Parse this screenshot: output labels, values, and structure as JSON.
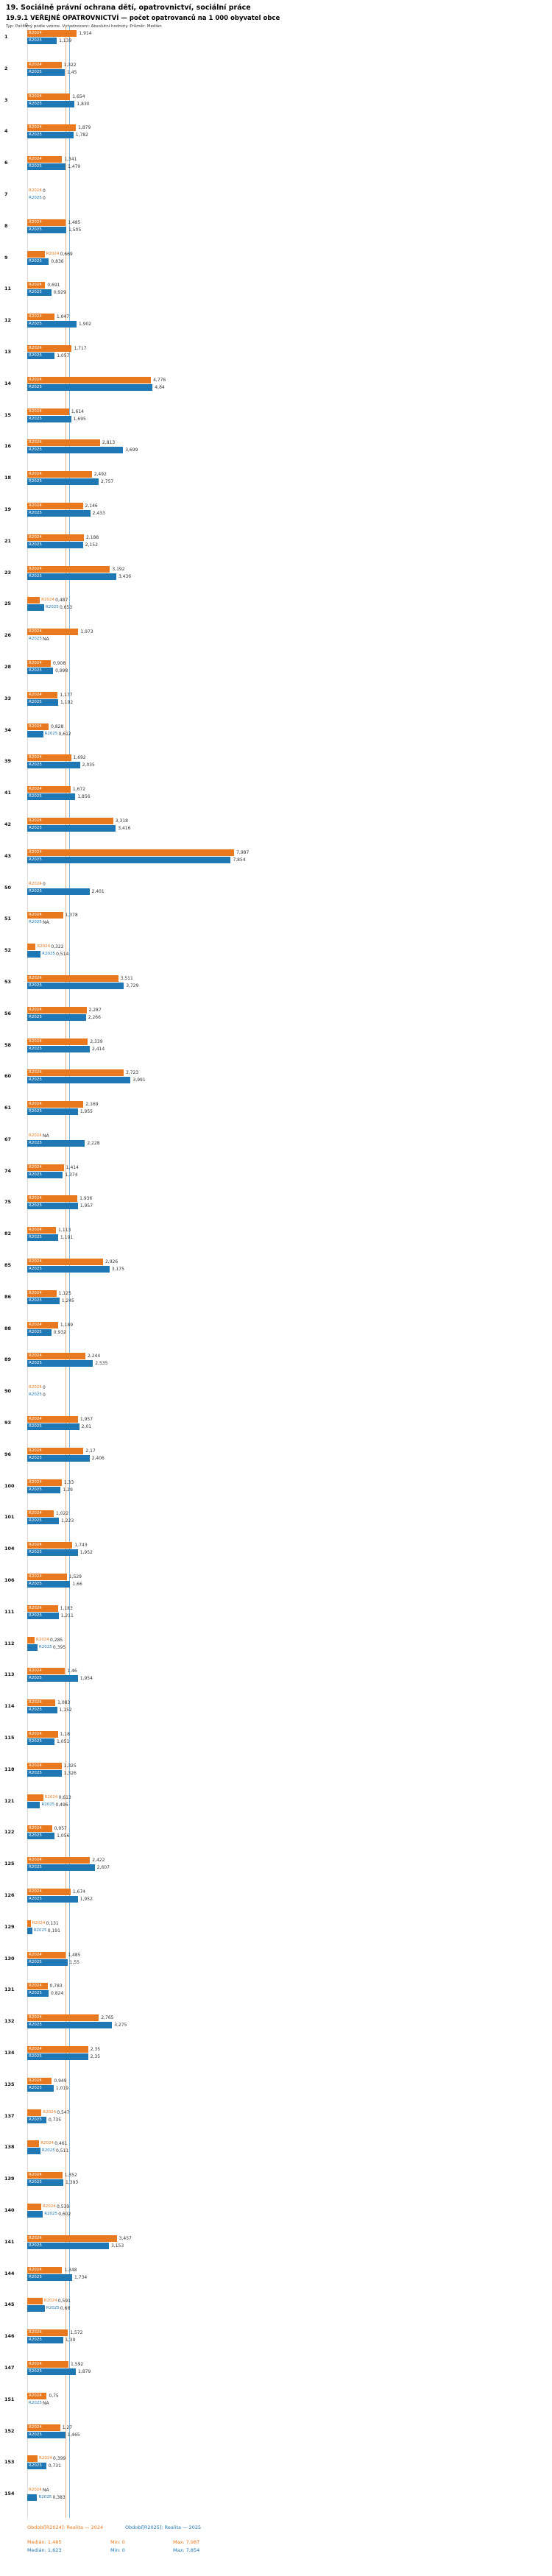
{
  "header": {
    "title": "19. Sociálně právní ochrana dětí, opatrovnictví, sociální práce",
    "subtitle": "19.9.1 VEŘEJNÉ OPATROVNICTVÍ — počet opatrovanců na 1 000 obyvatel obce",
    "meta": "Typ: Počítaný podle vzorce. Vyhodnocení: Absolutní hodnoty. Průměr: Medián"
  },
  "colors": {
    "r2024": "#e8791e",
    "r2025": "#1f77b4",
    "value_text": "#333333"
  },
  "chart_data": {
    "type": "bar",
    "orientation": "horizontal",
    "grouped": true,
    "title": "19.9.1 VEŘEJNÉ OPATROVNICTVÍ — počet opatrovanců na 1 000 obyvatel obce",
    "x_axis": {
      "min": 0,
      "max": 8.03,
      "zero_label": "0"
    },
    "series": [
      {
        "name": "R2024",
        "color": "#e8791e",
        "median": 1.485,
        "min": 0,
        "max": 7.987
      },
      {
        "name": "R2025",
        "color": "#1f77b4",
        "median": 1.623,
        "min": 0,
        "max": 7.854
      }
    ],
    "gridlines": [
      {
        "series": "R2024",
        "value": 1.485
      },
      {
        "series": "R2025",
        "value": 1.623
      }
    ],
    "rows": [
      {
        "n": "1",
        "R2024": "1,914",
        "R2025": "1,139"
      },
      {
        "n": "2",
        "R2024": "1,322",
        "R2025": "1,45"
      },
      {
        "n": "3",
        "R2024": "1,654",
        "R2025": "1,830"
      },
      {
        "n": "4",
        "R2024": "1,879",
        "R2025": "1,782"
      },
      {
        "n": "6",
        "R2024": "1,341",
        "R2025": "1,479"
      },
      {
        "n": "7",
        "R2024": "0",
        "R2025": "0"
      },
      {
        "n": "8",
        "R2024": "1,485",
        "R2025": "1,505"
      },
      {
        "n": "9",
        "R2024": "0,669",
        "R2025": "0,836"
      },
      {
        "n": "11",
        "R2024": "0,691",
        "R2025": "0,929"
      },
      {
        "n": "12",
        "R2024": "1,047",
        "R2025": "1,902"
      },
      {
        "n": "13",
        "R2024": "1,717",
        "R2025": "1,057"
      },
      {
        "n": "14",
        "R2024": "4,776",
        "R2025": "4,84"
      },
      {
        "n": "15",
        "R2024": "1,614",
        "R2025": "1,695"
      },
      {
        "n": "16",
        "R2024": "2,813",
        "R2025": "3,699"
      },
      {
        "n": "18",
        "R2024": "2,492",
        "R2025": "2,757"
      },
      {
        "n": "19",
        "R2024": "2,146",
        "R2025": "2,433"
      },
      {
        "n": "21",
        "R2024": "2,188",
        "R2025": "2,152"
      },
      {
        "n": "23",
        "R2024": "3,192",
        "R2025": "3,436"
      },
      {
        "n": "25",
        "R2024": "0,487",
        "R2025": "0,653"
      },
      {
        "n": "26",
        "R2024": "1,973",
        "R2025": "NA"
      },
      {
        "n": "28",
        "R2024": "0,908",
        "R2025": "0,998"
      },
      {
        "n": "33",
        "R2024": "1,177",
        "R2025": "1,192"
      },
      {
        "n": "34",
        "R2024": "0,828",
        "R2025": "0,612"
      },
      {
        "n": "39",
        "R2024": "1,692",
        "R2025": "2,035"
      },
      {
        "n": "41",
        "R2024": "1,672",
        "R2025": "1,856"
      },
      {
        "n": "42",
        "R2024": "3,318",
        "R2025": "3,416"
      },
      {
        "n": "43",
        "R2024": "7,987",
        "R2025": "7,854"
      },
      {
        "n": "50",
        "R2024": "0",
        "R2025": "2,401"
      },
      {
        "n": "51",
        "R2024": "1,378",
        "R2025": "NA"
      },
      {
        "n": "52",
        "R2024": "0,322",
        "R2025": "0,514"
      },
      {
        "n": "53",
        "R2024": "3,511",
        "R2025": "3,729"
      },
      {
        "n": "56",
        "R2024": "2,287",
        "R2025": "2,266"
      },
      {
        "n": "58",
        "R2024": "2,339",
        "R2025": "2,414"
      },
      {
        "n": "60",
        "R2024": "3,723",
        "R2025": "3,991"
      },
      {
        "n": "61",
        "R2024": "2,169",
        "R2025": "1,955"
      },
      {
        "n": "67",
        "R2024": "NA",
        "R2025": "2,228"
      },
      {
        "n": "74",
        "R2024": "1,414",
        "R2025": "1,374"
      },
      {
        "n": "75",
        "R2024": "1,936",
        "R2025": "1,957"
      },
      {
        "n": "82",
        "R2024": "1,113",
        "R2025": "1,191"
      },
      {
        "n": "85",
        "R2024": "2,926",
        "R2025": "3,175"
      },
      {
        "n": "86",
        "R2024": "1,125",
        "R2025": "1,245"
      },
      {
        "n": "88",
        "R2024": "1,189",
        "R2025": "0,932"
      },
      {
        "n": "89",
        "R2024": "2,244",
        "R2025": "2,535"
      },
      {
        "n": "90",
        "R2024": "0",
        "R2025": "0"
      },
      {
        "n": "93",
        "R2024": "1,957",
        "R2025": "2,01"
      },
      {
        "n": "96",
        "R2024": "2,17",
        "R2025": "2,406"
      },
      {
        "n": "100",
        "R2024": "1,33",
        "R2025": "1,29"
      },
      {
        "n": "101",
        "R2024": "1,022",
        "R2025": "1,223"
      },
      {
        "n": "104",
        "R2024": "1,743",
        "R2025": "1,952"
      },
      {
        "n": "106",
        "R2024": "1,529",
        "R2025": "1,66"
      },
      {
        "n": "111",
        "R2024": "1,183",
        "R2025": "1,211"
      },
      {
        "n": "112",
        "R2024": "0,285",
        "R2025": "0,395"
      },
      {
        "n": "113",
        "R2024": "1,46",
        "R2025": "1,954"
      },
      {
        "n": "114",
        "R2024": "1,083",
        "R2025": "1,152"
      },
      {
        "n": "115",
        "R2024": "1,18",
        "R2025": "1,051"
      },
      {
        "n": "118",
        "R2024": "1,325",
        "R2025": "1,326"
      },
      {
        "n": "121",
        "R2024": "0,613",
        "R2025": "0,496"
      },
      {
        "n": "122",
        "R2024": "0,957",
        "R2025": "1,056"
      },
      {
        "n": "125",
        "R2024": "2,422",
        "R2025": "2,607"
      },
      {
        "n": "126",
        "R2024": "1,674",
        "R2025": "1,952"
      },
      {
        "n": "129",
        "R2024": "0,131",
        "R2025": "0,191"
      },
      {
        "n": "130",
        "R2024": "1,485",
        "R2025": "1,55"
      },
      {
        "n": "131",
        "R2024": "0,783",
        "R2025": "0,824"
      },
      {
        "n": "132",
        "R2024": "2,765",
        "R2025": "3,275"
      },
      {
        "n": "134",
        "R2024": "2,35",
        "R2025": "2,35"
      },
      {
        "n": "135",
        "R2024": "0,949",
        "R2025": "1,019"
      },
      {
        "n": "137",
        "R2024": "0,547",
        "R2025": "0,735"
      },
      {
        "n": "138",
        "R2024": "0,461",
        "R2025": "0,511"
      },
      {
        "n": "139",
        "R2024": "1,352",
        "R2025": "1,393"
      },
      {
        "n": "140",
        "R2024": "0,539",
        "R2025": "0,602"
      },
      {
        "n": "141",
        "R2024": "3,457",
        "R2025": "3,153"
      },
      {
        "n": "144",
        "R2024": "1,348",
        "R2025": "1,734"
      },
      {
        "n": "145",
        "R2024": "0,591",
        "R2025": "0,68"
      },
      {
        "n": "146",
        "R2024": "1,572",
        "R2025": "1,39"
      },
      {
        "n": "147",
        "R2024": "1,592",
        "R2025": "1,879"
      },
      {
        "n": "151",
        "R2024": "0,75",
        "R2025": "NA"
      },
      {
        "n": "152",
        "R2024": "1,27",
        "R2025": "1,465"
      },
      {
        "n": "153",
        "R2024": "0,399",
        "R2025": "0,731"
      },
      {
        "n": "154",
        "R2024": "NA",
        "R2025": "0,383"
      }
    ]
  },
  "footer": {
    "period_r2024": "Období[R2024]: Realita — 2024",
    "period_r2025": "Období[R2025]: Realita — 2025",
    "stats_r2024": {
      "median": "Medián: 1,485",
      "min": "Min: 0",
      "max": "Max: 7,987"
    },
    "stats_r2025": {
      "median": "Medián: 1,623",
      "min": "Min: 0",
      "max": "Max: 7,854"
    }
  }
}
